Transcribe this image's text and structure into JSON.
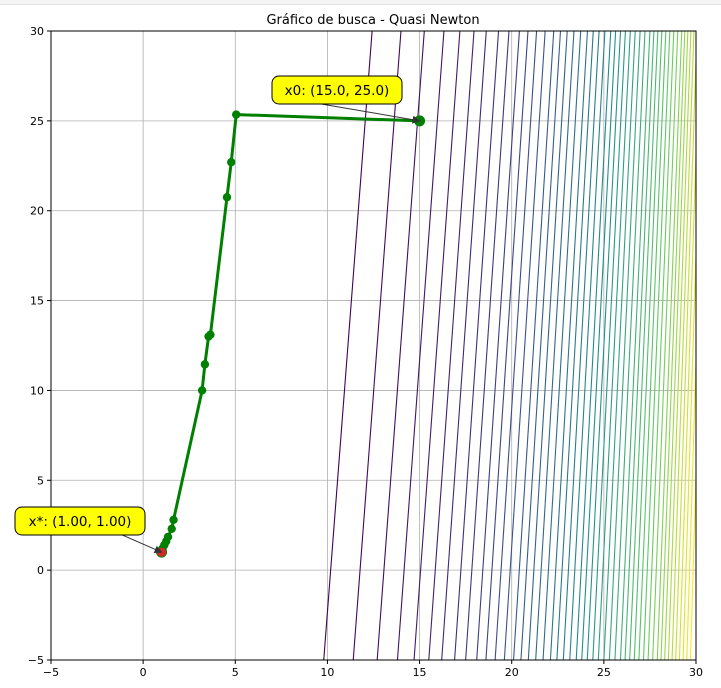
{
  "chart_data": {
    "type": "line",
    "title": "Gráfico de busca - Quasi Newton",
    "xlabel": "",
    "ylabel": "",
    "xlim": [
      -5,
      30
    ],
    "ylim": [
      -5,
      30
    ],
    "xticks": [
      -5,
      0,
      5,
      10,
      15,
      20,
      25,
      30
    ],
    "yticks": [
      -5,
      0,
      5,
      10,
      15,
      20,
      25,
      30
    ],
    "grid": true,
    "background_contours": {
      "kind": "contour lines",
      "colormap": "viridis",
      "levels_x_at_y_min": [
        9.8,
        11.4,
        12.7,
        13.8,
        14.7,
        15.5,
        16.2,
        16.9,
        17.5,
        18.1,
        18.6,
        19.1,
        19.6,
        20.1,
        20.5,
        20.9,
        21.3,
        21.7,
        22.1,
        22.45,
        22.8,
        23.15,
        23.5,
        23.8,
        24.1,
        24.4,
        24.7,
        25.0,
        25.3,
        25.6,
        25.9,
        26.15,
        26.4,
        26.65,
        26.9,
        27.15,
        27.4,
        27.65,
        27.9,
        28.1,
        28.3,
        28.5,
        28.7,
        28.9,
        29.1,
        29.3,
        29.5,
        29.7
      ],
      "slant": 0.075,
      "colors": {
        "low": "#440154",
        "mid": "#21918c",
        "high": "#fde725"
      }
    },
    "series": [
      {
        "color": "#008000",
        "x": [
          15.0,
          5.05,
          4.78,
          4.55,
          3.65,
          3.55,
          3.35,
          3.2,
          1.65,
          1.55,
          1.35,
          1.25,
          1.15,
          1.05,
          1.0
        ],
        "y": [
          25.0,
          25.35,
          22.7,
          20.75,
          13.1,
          13.0,
          11.45,
          10.0,
          2.8,
          2.3,
          1.85,
          1.6,
          1.4,
          1.2,
          1.0
        ]
      }
    ],
    "start_point": {
      "x": 15.0,
      "y": 25.0,
      "color": "#008000"
    },
    "end_point": {
      "x": 1.0,
      "y": 1.0,
      "color": "#d62728"
    },
    "annotations": [
      {
        "text": "x0: (15.0, 25.0)",
        "target_x": 15.0,
        "target_y": 25.0,
        "box_color": "#ffff00"
      },
      {
        "text": "x*: (1.00, 1.00)",
        "target_x": 1.0,
        "target_y": 1.0,
        "box_color": "#ffff00"
      }
    ]
  }
}
